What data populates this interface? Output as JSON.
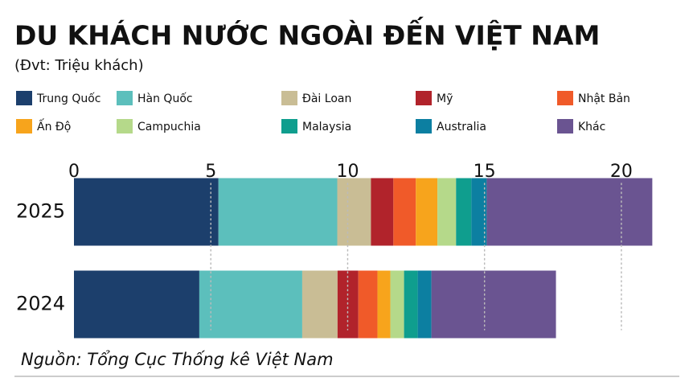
{
  "chart_data": {
    "type": "stacked_barh",
    "title": "DU KHÁCH NƯỚC NGOÀI ĐẾN VIỆT NAM",
    "subtitle": "(Đvt: Triệu khách)",
    "source": "Nguồn: Tổng Cục Thống kê Việt Nam",
    "categories": [
      "2025",
      "2024"
    ],
    "series": [
      {
        "name": "Trung Quốc",
        "color": "#1c3f6c",
        "values": [
          5.28,
          4.58
        ]
      },
      {
        "name": "Hàn Quốc",
        "color": "#5cbfbc",
        "values": [
          4.34,
          3.76
        ]
      },
      {
        "name": "Đài Loan",
        "color": "#c9bd95",
        "values": [
          1.23,
          1.29
        ]
      },
      {
        "name": "Mỹ",
        "color": "#b1232b",
        "values": [
          0.82,
          0.76
        ]
      },
      {
        "name": "Nhật Bản",
        "color": "#f05a29",
        "values": [
          0.82,
          0.7
        ]
      },
      {
        "name": "Ấn Độ",
        "color": "#f7a41c",
        "values": [
          0.79,
          0.47
        ]
      },
      {
        "name": "Campuchia",
        "color": "#b5d98a",
        "values": [
          0.68,
          0.5
        ]
      },
      {
        "name": "Malaysia",
        "color": "#0f9e8e",
        "values": [
          0.56,
          0.5
        ]
      },
      {
        "name": "Australia",
        "color": "#0c7fa1",
        "values": [
          0.56,
          0.5
        ]
      },
      {
        "name": "Khác",
        "color": "#6a5491",
        "values": [
          6.05,
          4.55
        ]
      }
    ],
    "xlim": [
      0,
      22
    ],
    "xticks": [
      0,
      5,
      10,
      15,
      20
    ],
    "grid": true
  }
}
